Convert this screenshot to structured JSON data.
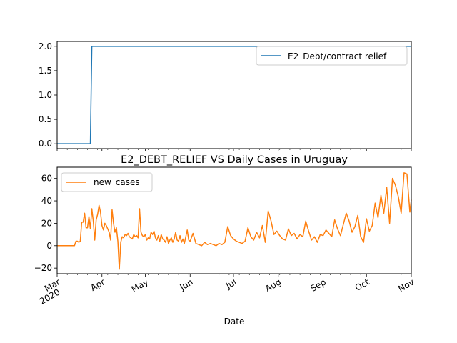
{
  "chart_data": [
    {
      "type": "line",
      "title": "",
      "xlabel": "",
      "ylabel": "",
      "xlim": [
        "2020-03-01",
        "2020-11-01"
      ],
      "ylim": [
        -0.1,
        2.1
      ],
      "yticks": [
        "0.0",
        "0.5",
        "1.0",
        "1.5",
        "2.0"
      ],
      "legend": "top-right",
      "series": [
        {
          "name": "E2_Debt/contract relief",
          "color": "#1f77b4",
          "x": [
            "2020-03-01",
            "2020-03-24",
            "2020-03-25",
            "2020-11-01"
          ],
          "values": [
            0,
            0,
            2,
            2
          ]
        }
      ]
    },
    {
      "type": "line",
      "title": "E2_DEBT_RELIEF VS Daily Cases in Uruguay",
      "xlabel": "Date",
      "ylabel": "",
      "xlim": [
        "2020-03-01",
        "2020-11-01"
      ],
      "ylim": [
        -25,
        70
      ],
      "yticks": [
        "−20",
        "0",
        "20",
        "40",
        "60"
      ],
      "xticks": [
        {
          "date": "2020-03-01",
          "label": "Mar",
          "sublabel": "2020"
        },
        {
          "date": "2020-04-01",
          "label": "Apr"
        },
        {
          "date": "2020-05-01",
          "label": "May"
        },
        {
          "date": "2020-06-01",
          "label": "Jun"
        },
        {
          "date": "2020-07-01",
          "label": "Jul"
        },
        {
          "date": "2020-08-01",
          "label": "Aug"
        },
        {
          "date": "2020-09-01",
          "label": "Sep"
        },
        {
          "date": "2020-10-01",
          "label": "Oct"
        },
        {
          "date": "2020-11-01",
          "label": "Nov"
        }
      ],
      "legend": "top-left",
      "series": [
        {
          "name": "new_cases",
          "color": "#ff7f0e",
          "x": [
            "2020-03-01",
            "2020-03-13",
            "2020-03-14",
            "2020-03-15",
            "2020-03-16",
            "2020-03-17",
            "2020-03-18",
            "2020-03-19",
            "2020-03-20",
            "2020-03-21",
            "2020-03-22",
            "2020-03-23",
            "2020-03-24",
            "2020-03-25",
            "2020-03-26",
            "2020-03-27",
            "2020-03-28",
            "2020-03-29",
            "2020-03-30",
            "2020-03-31",
            "2020-04-01",
            "2020-04-02",
            "2020-04-03",
            "2020-04-04",
            "2020-04-05",
            "2020-04-06",
            "2020-04-07",
            "2020-04-08",
            "2020-04-09",
            "2020-04-10",
            "2020-04-11",
            "2020-04-12",
            "2020-04-13",
            "2020-04-14",
            "2020-04-15",
            "2020-04-16",
            "2020-04-17",
            "2020-04-18",
            "2020-04-19",
            "2020-04-20",
            "2020-04-21",
            "2020-04-22",
            "2020-04-23",
            "2020-04-24",
            "2020-04-25",
            "2020-04-26",
            "2020-04-27",
            "2020-04-28",
            "2020-04-29",
            "2020-04-30",
            "2020-05-01",
            "2020-05-02",
            "2020-05-03",
            "2020-05-04",
            "2020-05-05",
            "2020-05-06",
            "2020-05-07",
            "2020-05-08",
            "2020-05-09",
            "2020-05-10",
            "2020-05-11",
            "2020-05-12",
            "2020-05-13",
            "2020-05-14",
            "2020-05-15",
            "2020-05-16",
            "2020-05-17",
            "2020-05-18",
            "2020-05-19",
            "2020-05-20",
            "2020-05-21",
            "2020-05-22",
            "2020-05-23",
            "2020-05-24",
            "2020-05-25",
            "2020-05-26",
            "2020-05-27",
            "2020-05-28",
            "2020-05-29",
            "2020-05-30",
            "2020-05-31",
            "2020-06-01",
            "2020-06-03",
            "2020-06-05",
            "2020-06-07",
            "2020-06-09",
            "2020-06-11",
            "2020-06-13",
            "2020-06-15",
            "2020-06-17",
            "2020-06-19",
            "2020-06-21",
            "2020-06-23",
            "2020-06-25",
            "2020-06-27",
            "2020-06-29",
            "2020-07-01",
            "2020-07-03",
            "2020-07-05",
            "2020-07-07",
            "2020-07-09",
            "2020-07-11",
            "2020-07-13",
            "2020-07-15",
            "2020-07-17",
            "2020-07-19",
            "2020-07-21",
            "2020-07-23",
            "2020-07-25",
            "2020-07-27",
            "2020-07-29",
            "2020-07-31",
            "2020-08-02",
            "2020-08-04",
            "2020-08-06",
            "2020-08-08",
            "2020-08-10",
            "2020-08-12",
            "2020-08-14",
            "2020-08-16",
            "2020-08-18",
            "2020-08-20",
            "2020-08-22",
            "2020-08-24",
            "2020-08-26",
            "2020-08-28",
            "2020-08-30",
            "2020-09-01",
            "2020-09-03",
            "2020-09-05",
            "2020-09-07",
            "2020-09-09",
            "2020-09-11",
            "2020-09-13",
            "2020-09-15",
            "2020-09-17",
            "2020-09-19",
            "2020-09-21",
            "2020-09-23",
            "2020-09-25",
            "2020-09-27",
            "2020-09-29",
            "2020-10-01",
            "2020-10-03",
            "2020-10-05",
            "2020-10-07",
            "2020-10-09",
            "2020-10-11",
            "2020-10-13",
            "2020-10-15",
            "2020-10-17",
            "2020-10-19",
            "2020-10-21",
            "2020-10-23",
            "2020-10-25",
            "2020-10-27",
            "2020-10-29",
            "2020-10-31",
            "2020-11-01"
          ],
          "values": [
            0,
            0,
            4,
            4,
            3,
            4,
            21,
            21,
            29,
            16,
            16,
            26,
            15,
            33,
            22,
            5,
            23,
            28,
            36,
            30,
            18,
            14,
            20,
            18,
            15,
            12,
            5,
            32,
            20,
            12,
            16,
            4,
            -21,
            3,
            8,
            7,
            10,
            9,
            11,
            8,
            7,
            6,
            10,
            8,
            9,
            7,
            33,
            12,
            9,
            8,
            10,
            5,
            7,
            6,
            12,
            10,
            13,
            7,
            5,
            9,
            4,
            10,
            6,
            5,
            3,
            8,
            2,
            5,
            7,
            3,
            6,
            12,
            5,
            4,
            9,
            3,
            6,
            2,
            8,
            14,
            5,
            4,
            11,
            2,
            1,
            0,
            3,
            1,
            2,
            1,
            0,
            2,
            1,
            3,
            17,
            9,
            6,
            4,
            3,
            2,
            4,
            16,
            8,
            5,
            12,
            7,
            18,
            3,
            31,
            22,
            10,
            13,
            9,
            6,
            5,
            15,
            9,
            11,
            6,
            10,
            8,
            22,
            13,
            5,
            8,
            3,
            10,
            9,
            14,
            11,
            8,
            23,
            15,
            9,
            19,
            29,
            22,
            12,
            17,
            27,
            8,
            3,
            24,
            13,
            18,
            38,
            25,
            45,
            29,
            52,
            20,
            60,
            54,
            44,
            29,
            65,
            64,
            30,
            41
          ]
        }
      ]
    }
  ]
}
